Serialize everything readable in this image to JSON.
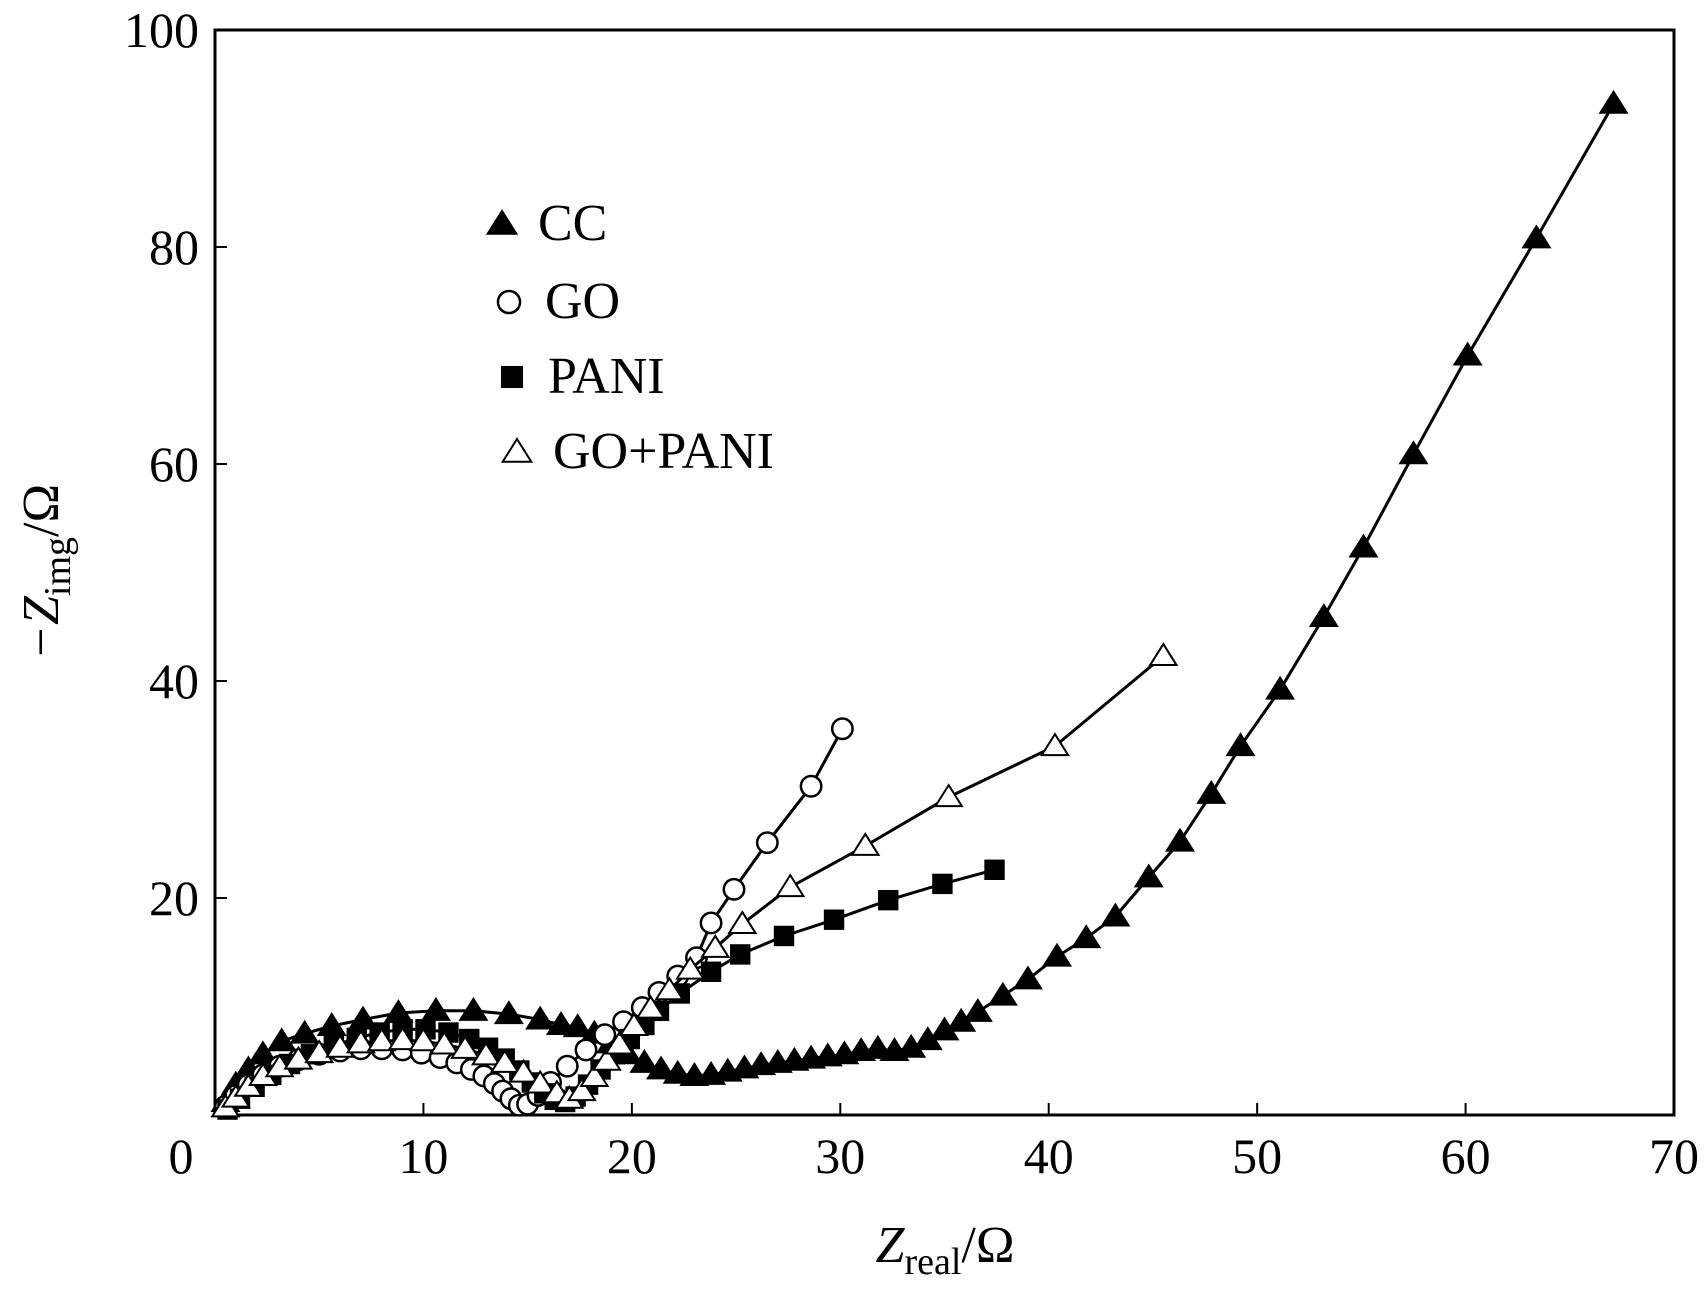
{
  "chart_data": {
    "type": "scatter",
    "xlabel": {
      "main": "Z",
      "sub": "real",
      "unit": "/Ω"
    },
    "ylabel": {
      "prefix": "−Z",
      "sub": "img",
      "unit": "/Ω"
    },
    "xlim": [
      0,
      70
    ],
    "ylim": [
      0,
      100
    ],
    "x_ticks": [
      0,
      10,
      20,
      30,
      40,
      50,
      60,
      70
    ],
    "y_ticks": [
      0,
      20,
      40,
      60,
      80,
      100
    ],
    "grid": false,
    "legend": "upper-left-inside",
    "series": [
      {
        "name": "CC",
        "marker": "triangle-filled",
        "x": [
          0.5,
          1.0,
          1.6,
          2.3,
          3.2,
          4.3,
          5.6,
          7.1,
          8.8,
          10.6,
          12.4,
          14.1,
          15.6,
          16.6,
          17.4,
          18.2,
          19.0,
          19.8,
          20.6,
          21.4,
          22.2,
          23.0,
          23.8,
          24.6,
          25.4,
          26.2,
          27.0,
          27.8,
          28.6,
          29.4,
          30.2,
          31.0,
          31.8,
          32.6,
          33.4,
          34.2,
          35.0,
          35.8,
          36.6,
          37.8,
          39.0,
          40.4,
          41.8,
          43.2,
          44.8,
          46.3,
          47.8,
          49.2,
          51.1,
          53.2,
          55.1,
          57.5,
          60.1,
          63.4,
          67.1
        ],
        "y": [
          1.2,
          2.8,
          4.2,
          5.6,
          6.8,
          7.5,
          8.2,
          8.8,
          9.4,
          9.6,
          9.6,
          9.3,
          8.8,
          8.3,
          8.1,
          7.5,
          6.6,
          5.6,
          4.8,
          4.2,
          3.8,
          3.6,
          3.7,
          4.0,
          4.3,
          4.6,
          4.8,
          5.0,
          5.2,
          5.4,
          5.6,
          5.9,
          6.1,
          5.9,
          6.2,
          6.9,
          7.8,
          8.6,
          9.5,
          11.0,
          12.5,
          14.6,
          16.3,
          18.3,
          21.9,
          25.2,
          29.6,
          34.0,
          39.2,
          45.9,
          52.3,
          60.9,
          70.0,
          80.8,
          93.2
        ]
      },
      {
        "name": "GO",
        "marker": "circle-open",
        "x": [
          0.5,
          1.0,
          1.6,
          2.3,
          3.1,
          4.0,
          5.0,
          6.0,
          7.0,
          8.0,
          9.0,
          9.9,
          10.8,
          11.6,
          12.3,
          12.9,
          13.4,
          13.8,
          14.2,
          14.6,
          15.0,
          15.5,
          16.1,
          16.9,
          17.8,
          18.7,
          19.6,
          20.5,
          21.3,
          22.2,
          23.1,
          23.8,
          24.9,
          26.5,
          28.6,
          30.1
        ],
        "y": [
          0.8,
          1.8,
          2.8,
          3.7,
          4.5,
          5.1,
          5.6,
          5.9,
          6.1,
          6.1,
          6.0,
          5.7,
          5.3,
          4.8,
          4.2,
          3.6,
          2.9,
          2.2,
          1.5,
          0.9,
          1.0,
          1.8,
          3.0,
          4.5,
          6.0,
          7.4,
          8.6,
          9.9,
          11.3,
          12.8,
          14.5,
          17.7,
          20.8,
          25.1,
          30.3,
          35.6
        ]
      },
      {
        "name": "PANI",
        "marker": "square-filled",
        "x": [
          0.6,
          1.2,
          1.9,
          2.7,
          3.6,
          4.6,
          5.7,
          6.8,
          7.9,
          9.0,
          10.1,
          11.2,
          12.2,
          13.1,
          13.9,
          14.6,
          15.2,
          15.8,
          16.3,
          16.8,
          17.3,
          17.9,
          18.5,
          19.2,
          19.9,
          20.6,
          21.3,
          22.3,
          23.8,
          25.2,
          27.3,
          29.7,
          32.3,
          34.9,
          37.4
        ],
        "y": [
          0.5,
          1.5,
          2.6,
          3.7,
          4.7,
          5.6,
          6.4,
          7.1,
          7.6,
          7.9,
          7.9,
          7.6,
          7.0,
          6.2,
          5.2,
          4.1,
          3.0,
          2.0,
          1.4,
          1.2,
          1.7,
          2.8,
          4.2,
          5.6,
          7.0,
          8.3,
          9.6,
          11.2,
          13.2,
          14.8,
          16.5,
          18.0,
          19.8,
          21.3,
          22.6
        ]
      },
      {
        "name": "GO+PANI",
        "marker": "triangle-open",
        "x": [
          0.5,
          1.0,
          1.6,
          2.3,
          3.1,
          4.0,
          5.0,
          6.0,
          7.0,
          8.0,
          9.0,
          10.0,
          11.0,
          12.0,
          13.0,
          13.9,
          14.8,
          15.6,
          16.4,
          17.0,
          17.6,
          18.2,
          18.8,
          19.4,
          20.1,
          20.9,
          21.8,
          22.8,
          24.0,
          25.3,
          27.6,
          31.2,
          35.2,
          40.3,
          45.5
        ],
        "y": [
          0.7,
          1.6,
          2.6,
          3.6,
          4.4,
          5.1,
          5.7,
          6.2,
          6.6,
          6.8,
          6.9,
          6.8,
          6.5,
          6.1,
          5.5,
          4.8,
          3.9,
          2.9,
          2.0,
          1.5,
          2.2,
          3.5,
          5.0,
          6.5,
          8.2,
          9.8,
          11.5,
          13.4,
          15.4,
          17.6,
          21.0,
          24.8,
          29.3,
          34.0,
          42.3
        ]
      }
    ],
    "legend_entries": [
      {
        "label": "CC",
        "marker": "triangle-filled"
      },
      {
        "label": "GO",
        "marker": "circle-open"
      },
      {
        "label": "PANI",
        "marker": "square-filled"
      },
      {
        "label": "GO+PANI",
        "marker": "triangle-open"
      }
    ]
  }
}
